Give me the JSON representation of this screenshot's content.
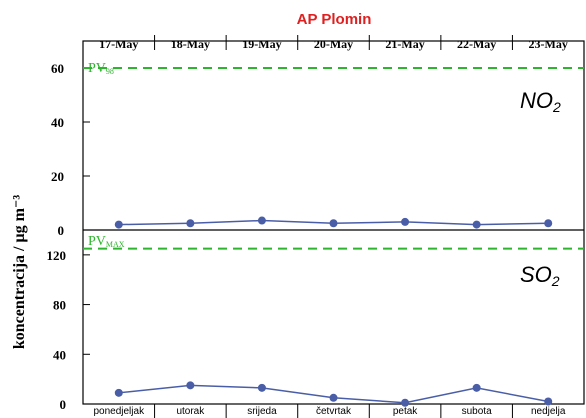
{
  "chart_data": [
    {
      "type": "line",
      "title": "AP Plomin",
      "x_top_labels": [
        "17-May",
        "18-May",
        "19-May",
        "20-May",
        "21-May",
        "22-May",
        "23-May"
      ],
      "ylabel": "koncentracija / μg m⁻³",
      "species_label": {
        "main": "NO",
        "sub": "2"
      },
      "ylim": [
        0,
        70
      ],
      "yticks": [
        0,
        20,
        40,
        60
      ],
      "grid": false,
      "limit_line": {
        "label_main": "PV",
        "label_sub": "98",
        "value": 60,
        "color": "#2db52d"
      },
      "series": [
        {
          "values": [
            2,
            2.5,
            3.5,
            2.5,
            3,
            2,
            2.5
          ],
          "color": "#4a5ea8"
        }
      ]
    },
    {
      "type": "line",
      "x_bottom_labels": [
        "ponedjeljak",
        "utorak",
        "srijeda",
        "četvrtak",
        "petak",
        "subota",
        "nedjelja"
      ],
      "species_label": {
        "main": "SO",
        "sub": "2"
      },
      "ylim": [
        0,
        140
      ],
      "yticks": [
        0,
        40,
        80,
        120
      ],
      "grid": false,
      "limit_line": {
        "label_main": "PV",
        "label_sub": "MAX",
        "value": 125,
        "color": "#2db52d"
      },
      "series": [
        {
          "values": [
            9,
            15,
            13,
            5,
            1,
            13,
            2
          ],
          "color": "#4a5ea8"
        }
      ]
    }
  ],
  "colors": {
    "title": "#e02020",
    "limit": "#2db52d",
    "series": "#4a5ea8",
    "axis": "#000000"
  }
}
